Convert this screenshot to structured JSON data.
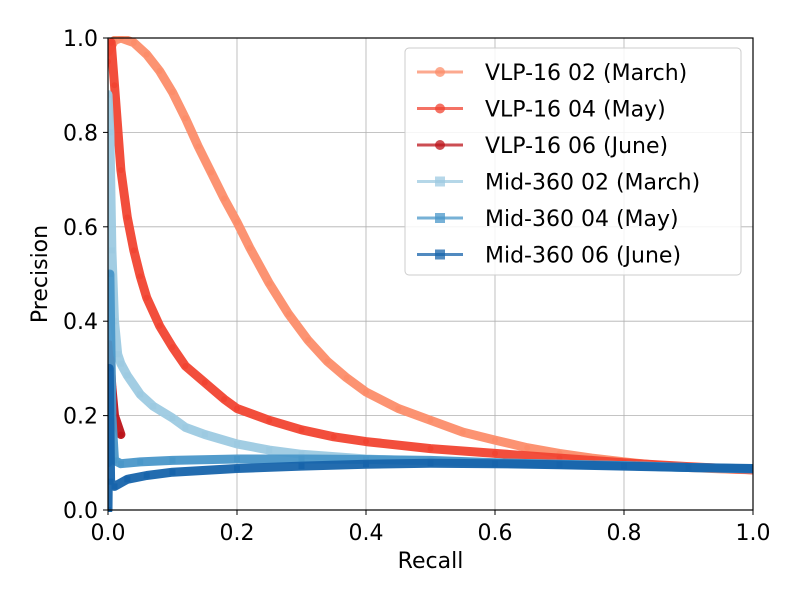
{
  "chart_data": {
    "type": "line",
    "title": "",
    "xlabel": "Recall",
    "ylabel": "Precision",
    "xlim": [
      0.0,
      1.0
    ],
    "ylim": [
      0.0,
      1.0
    ],
    "xticks": [
      "0.0",
      "0.2",
      "0.4",
      "0.6",
      "0.8",
      "1.0"
    ],
    "yticks": [
      "0.0",
      "0.2",
      "0.4",
      "0.6",
      "0.8",
      "1.0"
    ],
    "grid": true,
    "legend_position": "top-right",
    "series": [
      {
        "name": "VLP-16 02 (March)",
        "color": "#fc8d6a",
        "marker": "circle",
        "points": [
          [
            0.0,
            0.97
          ],
          [
            0.01,
            0.995
          ],
          [
            0.02,
            1.0
          ],
          [
            0.04,
            0.99
          ],
          [
            0.06,
            0.965
          ],
          [
            0.08,
            0.93
          ],
          [
            0.1,
            0.885
          ],
          [
            0.12,
            0.83
          ],
          [
            0.14,
            0.77
          ],
          [
            0.16,
            0.715
          ],
          [
            0.18,
            0.66
          ],
          [
            0.2,
            0.61
          ],
          [
            0.22,
            0.555
          ],
          [
            0.25,
            0.48
          ],
          [
            0.28,
            0.415
          ],
          [
            0.31,
            0.36
          ],
          [
            0.34,
            0.315
          ],
          [
            0.37,
            0.28
          ],
          [
            0.4,
            0.25
          ],
          [
            0.45,
            0.215
          ],
          [
            0.5,
            0.19
          ],
          [
            0.55,
            0.165
          ],
          [
            0.6,
            0.148
          ],
          [
            0.65,
            0.132
          ],
          [
            0.7,
            0.12
          ],
          [
            0.75,
            0.11
          ],
          [
            0.8,
            0.102
          ],
          [
            0.85,
            0.095
          ],
          [
            0.9,
            0.09
          ],
          [
            0.95,
            0.087
          ],
          [
            1.0,
            0.085
          ]
        ]
      },
      {
        "name": "VLP-16 04 (May)",
        "color": "#f14432",
        "marker": "circle",
        "points": [
          [
            0.0,
            0.95
          ],
          [
            0.005,
            0.99
          ],
          [
            0.01,
            0.9
          ],
          [
            0.02,
            0.72
          ],
          [
            0.03,
            0.62
          ],
          [
            0.04,
            0.55
          ],
          [
            0.05,
            0.495
          ],
          [
            0.06,
            0.45
          ],
          [
            0.08,
            0.39
          ],
          [
            0.1,
            0.345
          ],
          [
            0.12,
            0.305
          ],
          [
            0.15,
            0.27
          ],
          [
            0.18,
            0.235
          ],
          [
            0.2,
            0.215
          ],
          [
            0.25,
            0.19
          ],
          [
            0.3,
            0.17
          ],
          [
            0.35,
            0.155
          ],
          [
            0.4,
            0.145
          ],
          [
            0.5,
            0.13
          ],
          [
            0.6,
            0.12
          ],
          [
            0.7,
            0.11
          ],
          [
            0.8,
            0.1
          ],
          [
            0.9,
            0.092
          ],
          [
            1.0,
            0.085
          ]
        ]
      },
      {
        "name": "VLP-16 06 (June)",
        "color": "#bc141a",
        "marker": "circle",
        "points": [
          [
            0.0,
            0.27
          ],
          [
            0.002,
            0.35
          ],
          [
            0.004,
            0.3
          ],
          [
            0.006,
            0.26
          ],
          [
            0.01,
            0.2
          ],
          [
            0.02,
            0.16
          ]
        ]
      },
      {
        "name": "Mid-360 02 (March)",
        "color": "#9dcae1",
        "marker": "square",
        "points": [
          [
            0.0,
            0.88
          ],
          [
            0.003,
            0.8
          ],
          [
            0.006,
            0.55
          ],
          [
            0.01,
            0.4
          ],
          [
            0.015,
            0.33
          ],
          [
            0.02,
            0.31
          ],
          [
            0.03,
            0.285
          ],
          [
            0.05,
            0.245
          ],
          [
            0.07,
            0.22
          ],
          [
            0.1,
            0.195
          ],
          [
            0.12,
            0.175
          ],
          [
            0.15,
            0.16
          ],
          [
            0.2,
            0.14
          ],
          [
            0.25,
            0.127
          ],
          [
            0.3,
            0.118
          ],
          [
            0.4,
            0.108
          ],
          [
            0.5,
            0.103
          ],
          [
            0.6,
            0.1
          ],
          [
            0.7,
            0.097
          ],
          [
            0.8,
            0.094
          ],
          [
            0.9,
            0.09
          ],
          [
            1.0,
            0.087
          ]
        ]
      },
      {
        "name": "Mid-360 04 (May)",
        "color": "#4a97c9",
        "marker": "square",
        "points": [
          [
            0.0,
            0.1
          ],
          [
            0.003,
            0.5
          ],
          [
            0.006,
            0.2
          ],
          [
            0.01,
            0.105
          ],
          [
            0.02,
            0.098
          ],
          [
            0.05,
            0.102
          ],
          [
            0.1,
            0.105
          ],
          [
            0.2,
            0.108
          ],
          [
            0.3,
            0.108
          ],
          [
            0.4,
            0.107
          ],
          [
            0.5,
            0.105
          ],
          [
            0.6,
            0.1
          ],
          [
            0.7,
            0.097
          ],
          [
            0.8,
            0.094
          ],
          [
            0.9,
            0.09
          ],
          [
            1.0,
            0.087
          ]
        ]
      },
      {
        "name": "Mid-360 06 (June)",
        "color": "#1764ab",
        "marker": "square",
        "points": [
          [
            0.0,
            0.0
          ],
          [
            0.002,
            0.3
          ],
          [
            0.004,
            0.06
          ],
          [
            0.01,
            0.05
          ],
          [
            0.03,
            0.065
          ],
          [
            0.06,
            0.073
          ],
          [
            0.1,
            0.08
          ],
          [
            0.2,
            0.088
          ],
          [
            0.3,
            0.093
          ],
          [
            0.4,
            0.097
          ],
          [
            0.5,
            0.099
          ],
          [
            0.6,
            0.098
          ],
          [
            0.7,
            0.096
          ],
          [
            0.8,
            0.093
          ],
          [
            0.9,
            0.09
          ],
          [
            1.0,
            0.088
          ]
        ]
      }
    ]
  }
}
